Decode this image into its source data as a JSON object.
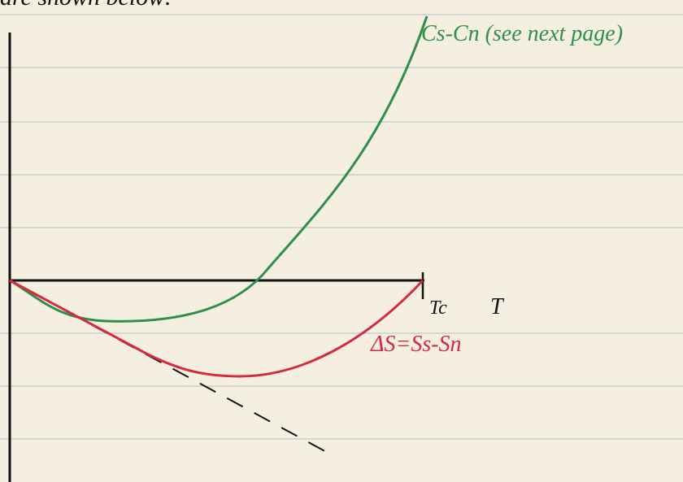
{
  "header": {
    "text": "are shown below:"
  },
  "labels": {
    "green_curve": "Cs-Cn (see next page)",
    "tc": "Tc",
    "t_axis": "T",
    "red_curve": "ΔS=Ss-Sn"
  }
}
